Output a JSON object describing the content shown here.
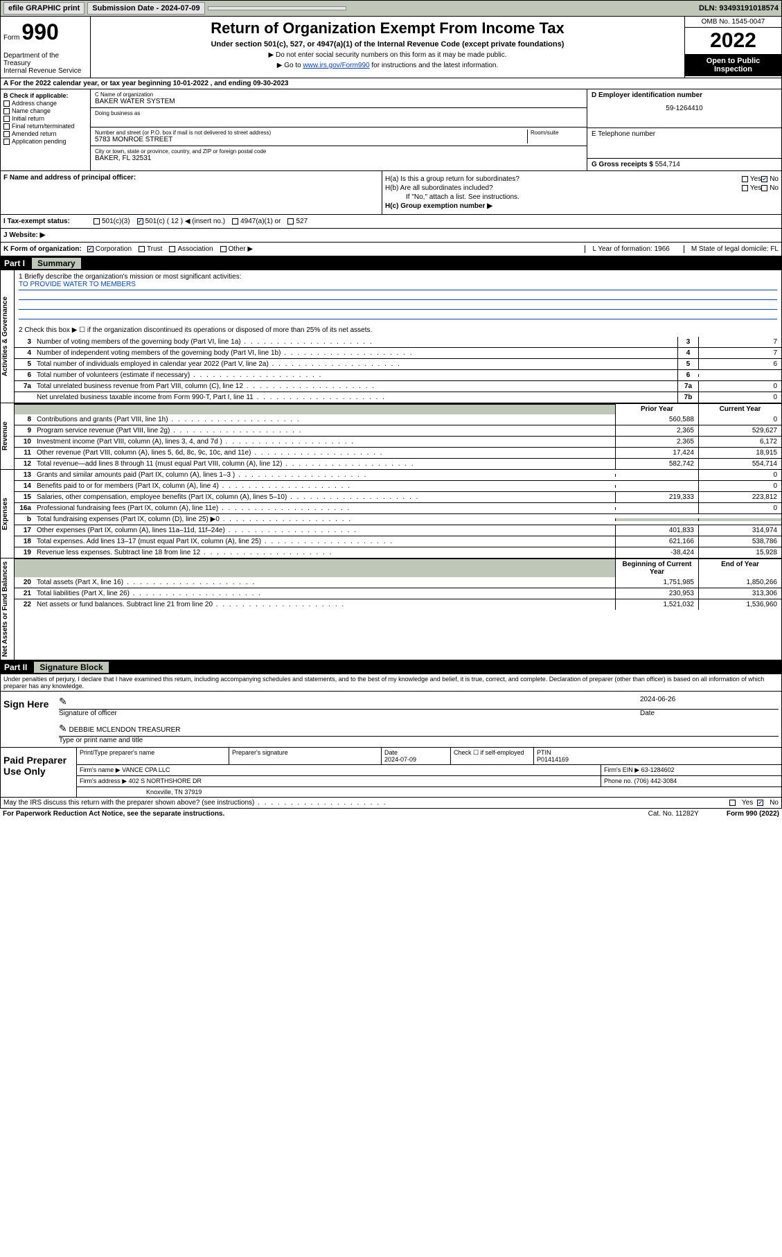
{
  "topbar": {
    "efile": "efile GRAPHIC print",
    "sub_label": "Submission Date - 2024-07-09",
    "dln": "DLN: 93493191018574"
  },
  "header": {
    "form_label": "Form",
    "form_num": "990",
    "dept": "Department of the Treasury\nInternal Revenue Service",
    "title": "Return of Organization Exempt From Income Tax",
    "sub1": "Under section 501(c), 527, or 4947(a)(1) of the Internal Revenue Code (except private foundations)",
    "sub2a": "▶ Do not enter social security numbers on this form as it may be made public.",
    "sub2b_pre": "▶ Go to ",
    "sub2b_link": "www.irs.gov/Form990",
    "sub2b_post": " for instructions and the latest information.",
    "omb": "OMB No. 1545-0047",
    "year": "2022",
    "open": "Open to Public Inspection"
  },
  "row_a": "A For the 2022 calendar year, or tax year beginning 10-01-2022    , and ending 09-30-2023",
  "col_b": {
    "label": "B Check if applicable:",
    "items": [
      "Address change",
      "Name change",
      "Initial return",
      "Final return/terminated",
      "Amended return",
      "Application pending"
    ]
  },
  "col_c": {
    "name_lbl": "C Name of organization",
    "name": "BAKER WATER SYSTEM",
    "dba_lbl": "Doing business as",
    "addr_lbl": "Number and street (or P.O. box if mail is not delivered to street address)",
    "room_lbl": "Room/suite",
    "addr": "5783 MONROE STREET",
    "city_lbl": "City or town, state or province, country, and ZIP or foreign postal code",
    "city": "BAKER, FL  32531"
  },
  "col_de": {
    "d_lbl": "D Employer identification number",
    "d_val": "59-1264410",
    "e_lbl": "E Telephone number",
    "g_lbl": "G Gross receipts $",
    "g_val": "554,714"
  },
  "row_f": "F  Name and address of principal officer:",
  "row_h": {
    "ha": "H(a)  Is this a group return for subordinates?",
    "hb": "H(b)  Are all subordinates included?",
    "hb_note": "If \"No,\" attach a list. See instructions.",
    "hc": "H(c)  Group exemption number ▶"
  },
  "row_i": {
    "label": "I   Tax-exempt status:",
    "opts": [
      "501(c)(3)",
      "501(c) ( 12 ) ◀ (insert no.)",
      "4947(a)(1) or",
      "527"
    ]
  },
  "row_j": "J   Website: ▶",
  "row_k": {
    "label": "K Form of organization:",
    "opts": [
      "Corporation",
      "Trust",
      "Association",
      "Other ▶"
    ],
    "l": "L Year of formation: 1966",
    "m": "M State of legal domicile: FL"
  },
  "part1": {
    "label": "Part I",
    "title": "Summary"
  },
  "mission": {
    "q1": "1  Briefly describe the organization's mission or most significant activities:",
    "q1_ans": "TO PROVIDE WATER TO MEMBERS",
    "q2": "2   Check this box ▶ ☐  if the organization discontinued its operations or disposed of more than 25% of its net assets."
  },
  "gov_lines": [
    {
      "n": "3",
      "d": "Number of voting members of the governing body (Part VI, line 1a)",
      "box": "3",
      "v": "7"
    },
    {
      "n": "4",
      "d": "Number of independent voting members of the governing body (Part VI, line 1b)",
      "box": "4",
      "v": "7"
    },
    {
      "n": "5",
      "d": "Total number of individuals employed in calendar year 2022 (Part V, line 2a)",
      "box": "5",
      "v": "6"
    },
    {
      "n": "6",
      "d": "Total number of volunteers (estimate if necessary)",
      "box": "6",
      "v": ""
    },
    {
      "n": "7a",
      "d": "Total unrelated business revenue from Part VIII, column (C), line 12",
      "box": "7a",
      "v": "0"
    },
    {
      "n": "",
      "d": "Net unrelated business taxable income from Form 990-T, Part I, line 11",
      "box": "7b",
      "v": "0"
    }
  ],
  "col_hdrs": {
    "prior": "Prior Year",
    "current": "Current Year"
  },
  "rev_lines": [
    {
      "n": "8",
      "d": "Contributions and grants (Part VIII, line 1h)",
      "p": "560,588",
      "c": "0"
    },
    {
      "n": "9",
      "d": "Program service revenue (Part VIII, line 2g)",
      "p": "2,365",
      "c": "529,627"
    },
    {
      "n": "10",
      "d": "Investment income (Part VIII, column (A), lines 3, 4, and 7d )",
      "p": "2,365",
      "c": "6,172"
    },
    {
      "n": "11",
      "d": "Other revenue (Part VIII, column (A), lines 5, 6d, 8c, 9c, 10c, and 11e)",
      "p": "17,424",
      "c": "18,915"
    },
    {
      "n": "12",
      "d": "Total revenue—add lines 8 through 11 (must equal Part VIII, column (A), line 12)",
      "p": "582,742",
      "c": "554,714"
    }
  ],
  "exp_lines": [
    {
      "n": "13",
      "d": "Grants and similar amounts paid (Part IX, column (A), lines 1–3 )",
      "p": "",
      "c": "0"
    },
    {
      "n": "14",
      "d": "Benefits paid to or for members (Part IX, column (A), line 4)",
      "p": "",
      "c": "0"
    },
    {
      "n": "15",
      "d": "Salaries, other compensation, employee benefits (Part IX, column (A), lines 5–10)",
      "p": "219,333",
      "c": "223,812"
    },
    {
      "n": "16a",
      "d": "Professional fundraising fees (Part IX, column (A), line 11e)",
      "p": "",
      "c": "0"
    },
    {
      "n": "b",
      "d": "Total fundraising expenses (Part IX, column (D), line 25) ▶0",
      "p": "grey",
      "c": "grey"
    },
    {
      "n": "17",
      "d": "Other expenses (Part IX, column (A), lines 11a–11d, 11f–24e)",
      "p": "401,833",
      "c": "314,974"
    },
    {
      "n": "18",
      "d": "Total expenses. Add lines 13–17 (must equal Part IX, column (A), line 25)",
      "p": "621,166",
      "c": "538,786"
    },
    {
      "n": "19",
      "d": "Revenue less expenses. Subtract line 18 from line 12",
      "p": "-38,424",
      "c": "15,928"
    }
  ],
  "na_hdrs": {
    "beg": "Beginning of Current Year",
    "end": "End of Year"
  },
  "na_lines": [
    {
      "n": "20",
      "d": "Total assets (Part X, line 16)",
      "p": "1,751,985",
      "c": "1,850,266"
    },
    {
      "n": "21",
      "d": "Total liabilities (Part X, line 26)",
      "p": "230,953",
      "c": "313,306"
    },
    {
      "n": "22",
      "d": "Net assets or fund balances. Subtract line 21 from line 20",
      "p": "1,521,032",
      "c": "1,536,960"
    }
  ],
  "part2": {
    "label": "Part II",
    "title": "Signature Block"
  },
  "sig": {
    "decl": "Under penalties of perjury, I declare that I have examined this return, including accompanying schedules and statements, and to the best of my knowledge and belief, it is true, correct, and complete. Declaration of preparer (other than officer) is based on all information of which preparer has any knowledge.",
    "here": "Sign Here",
    "sig_of": "Signature of officer",
    "date": "2024-06-26",
    "date_lbl": "Date",
    "name": "DEBBIE MCLENDON TREASURER",
    "name_lbl": "Type or print name and title"
  },
  "prep": {
    "label": "Paid Preparer Use Only",
    "r1": {
      "c1": "Print/Type preparer's name",
      "c2": "Preparer's signature",
      "c3": "Date\n2024-07-09",
      "c4": "Check ☐ if self-employed",
      "c5": "PTIN\nP01414169"
    },
    "r2": {
      "c1": "Firm's name    ▶ VANCE CPA LLC",
      "c2": "Firm's EIN ▶ 63-1284602"
    },
    "r3": {
      "c1": "Firm's address ▶ 402 S NORTHSHORE DR",
      "c2": "Phone no. (706) 442-3084"
    },
    "r4": "Knoxville, TN  37919"
  },
  "footer": {
    "q": "May the IRS discuss this return with the preparer shown above? (see instructions)",
    "paperwork": "For Paperwork Reduction Act Notice, see the separate instructions.",
    "cat": "Cat. No. 11282Y",
    "form": "Form 990 (2022)"
  },
  "vtabs": {
    "gov": "Activities & Governance",
    "rev": "Revenue",
    "exp": "Expenses",
    "na": "Net Assets or Fund Balances"
  }
}
